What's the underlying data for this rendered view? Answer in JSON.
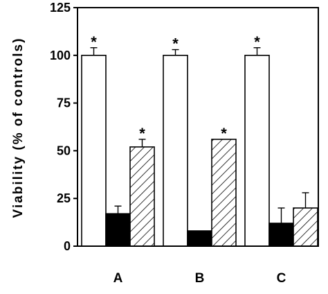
{
  "chart_data": {
    "type": "bar",
    "title": "",
    "xlabel": "",
    "ylabel": "Viability (% of controls)",
    "ylim": [
      0,
      125
    ],
    "yticks": [
      0,
      25,
      50,
      75,
      100,
      125
    ],
    "categories": [
      "A",
      "B",
      "C"
    ],
    "series": [
      {
        "fill": "white",
        "values": [
          100,
          100,
          100
        ],
        "errors": [
          4,
          3,
          4
        ],
        "significant": [
          true,
          true,
          true
        ]
      },
      {
        "fill": "black",
        "values": [
          17,
          8,
          12
        ],
        "errors": [
          4,
          0,
          8
        ],
        "significant": [
          false,
          false,
          false
        ]
      },
      {
        "fill": "hatched",
        "values": [
          52,
          56,
          20
        ],
        "errors": [
          4,
          0,
          8
        ],
        "significant": [
          true,
          true,
          false
        ]
      }
    ],
    "significance_marker": "*",
    "grid": false,
    "legend": "none"
  }
}
